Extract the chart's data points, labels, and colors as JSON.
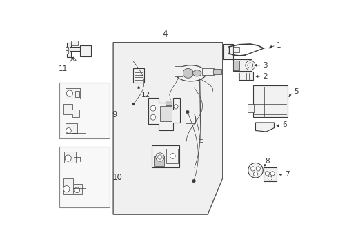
{
  "background_color": "#ffffff",
  "fig_width": 4.9,
  "fig_height": 3.6,
  "dpi": 100,
  "line_color": "#3a3a3a",
  "part_fill": "#f2f2f2",
  "door_fill": "#efefef",
  "door_border": "#555555",
  "label_color": "#111111",
  "label_fontsize": 7.5,
  "line_gray": "#888888",
  "part_gray": "#c8c8c8"
}
